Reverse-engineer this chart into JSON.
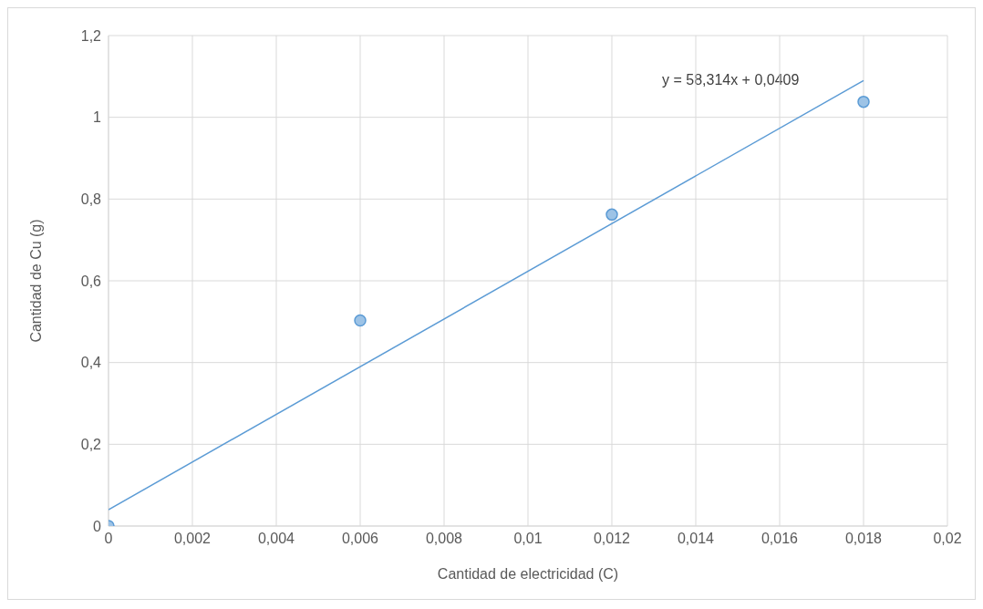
{
  "chart_data": {
    "type": "scatter",
    "xlabel": "Cantidad de electricidad (C)",
    "ylabel": "Cantidad de Cu (g)",
    "x": [
      0,
      0.006,
      0.012,
      0.018
    ],
    "series": [
      {
        "color": "#9dc3e6",
        "marker": "circle",
        "values": [
          0,
          0.503,
          0.762,
          1.038
        ]
      },
      {
        "type": "line",
        "color": "#5b9bd5",
        "marker": "none",
        "x": [
          0,
          0.018
        ],
        "values": [
          0.04,
          1.09
        ]
      }
    ],
    "annotations": [
      "y = 58,314x + 0,0409"
    ],
    "xlim": [
      0,
      0.02
    ],
    "xticks": [
      0,
      {
        "value": 0.002,
        "label": "0,002"
      },
      {
        "value": 0.004,
        "label": "0,004"
      },
      {
        "value": 0.006,
        "label": "0,006"
      },
      {
        "value": 0.008,
        "label": "0,008"
      },
      {
        "value": 0.01,
        "label": "0,01"
      },
      {
        "value": 0.012,
        "label": "0,012"
      },
      {
        "value": 0.014,
        "label": "0,014"
      },
      {
        "value": 0.016,
        "label": "0,016"
      },
      {
        "value": 0.018,
        "label": "0,018"
      },
      {
        "value": 0.02,
        "label": "0,02"
      }
    ],
    "ylim": [
      0,
      1.2
    ],
    "yticks": [
      0,
      {
        "value": 0.2,
        "label": "0,2"
      },
      {
        "value": 0.4,
        "label": "0,4"
      },
      {
        "value": 0.6,
        "label": "0,6"
      },
      {
        "value": 0.8,
        "label": "0,8"
      },
      1,
      {
        "value": 1.2,
        "label": "1,2"
      }
    ],
    "grid": true,
    "line_style": "solid"
  }
}
